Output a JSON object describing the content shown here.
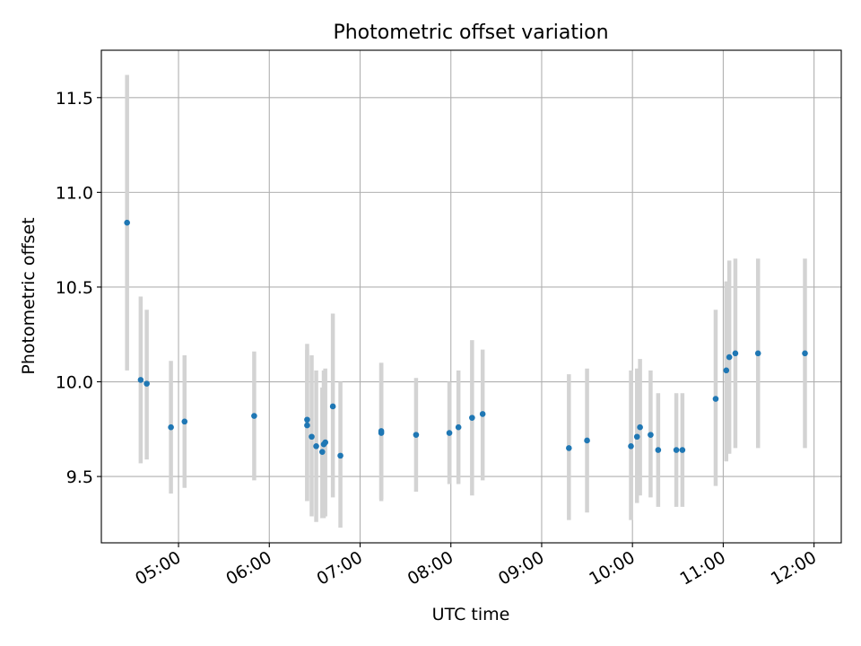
{
  "chart_data": {
    "type": "scatter",
    "title": "Photometric offset variation",
    "xlabel": "UTC time",
    "ylabel": "Photometric offset",
    "x_ticks": [
      "05:00",
      "06:00",
      "07:00",
      "08:00",
      "09:00",
      "10:00",
      "11:00",
      "12:00"
    ],
    "y_ticks": [
      "9.5",
      "10.0",
      "10.5",
      "11.0",
      "11.5"
    ],
    "xlim": [
      "04:09",
      "12:18"
    ],
    "ylim": [
      9.15,
      11.75
    ],
    "grid": true,
    "colors": {
      "marker": "#1f77b4",
      "errorbar": "#d3d3d3",
      "grid": "#b0b0b0"
    },
    "points": [
      {
        "t": "04:26",
        "y": 10.84,
        "lo": 10.06,
        "hi": 11.62
      },
      {
        "t": "04:35",
        "y": 10.01,
        "lo": 9.57,
        "hi": 10.45
      },
      {
        "t": "04:39",
        "y": 9.99,
        "lo": 9.59,
        "hi": 10.38
      },
      {
        "t": "04:55",
        "y": 9.76,
        "lo": 9.41,
        "hi": 10.11
      },
      {
        "t": "05:04",
        "y": 9.79,
        "lo": 9.44,
        "hi": 10.14
      },
      {
        "t": "05:50",
        "y": 9.82,
        "lo": 9.48,
        "hi": 10.16
      },
      {
        "t": "06:25",
        "y": 9.8,
        "lo": 9.37,
        "hi": 10.2
      },
      {
        "t": "06:25",
        "y": 9.77,
        "lo": 9.37,
        "hi": 10.17
      },
      {
        "t": "06:28",
        "y": 9.71,
        "lo": 9.29,
        "hi": 10.14
      },
      {
        "t": "06:31",
        "y": 9.66,
        "lo": 9.26,
        "hi": 10.06
      },
      {
        "t": "06:35",
        "y": 9.63,
        "lo": 9.28,
        "hi": 9.97
      },
      {
        "t": "06:36",
        "y": 9.67,
        "lo": 9.28,
        "hi": 10.06
      },
      {
        "t": "06:37",
        "y": 9.68,
        "lo": 9.29,
        "hi": 10.07
      },
      {
        "t": "06:42",
        "y": 9.87,
        "lo": 9.39,
        "hi": 10.36
      },
      {
        "t": "06:47",
        "y": 9.61,
        "lo": 9.23,
        "hi": 10.0
      },
      {
        "t": "07:14",
        "y": 9.73,
        "lo": 9.37,
        "hi": 10.1
      },
      {
        "t": "07:14",
        "y": 9.74,
        "lo": 9.38,
        "hi": 10.1
      },
      {
        "t": "07:37",
        "y": 9.72,
        "lo": 9.42,
        "hi": 10.02
      },
      {
        "t": "07:59",
        "y": 9.73,
        "lo": 9.46,
        "hi": 10.0
      },
      {
        "t": "08:05",
        "y": 9.76,
        "lo": 9.46,
        "hi": 10.06
      },
      {
        "t": "08:14",
        "y": 9.81,
        "lo": 9.4,
        "hi": 10.22
      },
      {
        "t": "08:21",
        "y": 9.83,
        "lo": 9.48,
        "hi": 10.17
      },
      {
        "t": "09:18",
        "y": 9.65,
        "lo": 9.27,
        "hi": 10.04
      },
      {
        "t": "09:30",
        "y": 9.69,
        "lo": 9.31,
        "hi": 10.07
      },
      {
        "t": "09:59",
        "y": 9.66,
        "lo": 9.27,
        "hi": 10.06
      },
      {
        "t": "10:03",
        "y": 9.71,
        "lo": 9.36,
        "hi": 10.07
      },
      {
        "t": "10:05",
        "y": 9.76,
        "lo": 9.4,
        "hi": 10.12
      },
      {
        "t": "10:12",
        "y": 9.72,
        "lo": 9.39,
        "hi": 10.06
      },
      {
        "t": "10:17",
        "y": 9.64,
        "lo": 9.34,
        "hi": 9.94
      },
      {
        "t": "10:29",
        "y": 9.64,
        "lo": 9.34,
        "hi": 9.94
      },
      {
        "t": "10:33",
        "y": 9.64,
        "lo": 9.34,
        "hi": 9.94
      },
      {
        "t": "10:55",
        "y": 9.91,
        "lo": 9.45,
        "hi": 10.38
      },
      {
        "t": "11:02",
        "y": 10.06,
        "lo": 9.58,
        "hi": 10.53
      },
      {
        "t": "11:04",
        "y": 10.13,
        "lo": 9.62,
        "hi": 10.64
      },
      {
        "t": "11:08",
        "y": 10.15,
        "lo": 9.65,
        "hi": 10.65
      },
      {
        "t": "11:23",
        "y": 10.15,
        "lo": 9.65,
        "hi": 10.65
      },
      {
        "t": "11:54",
        "y": 10.15,
        "lo": 9.65,
        "hi": 10.65
      }
    ]
  }
}
